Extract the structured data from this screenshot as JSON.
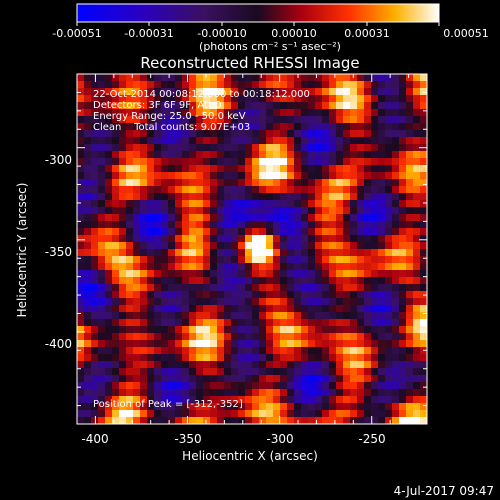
{
  "chart_data": {
    "type": "heatmap",
    "title": "Reconstructed RHESSI Image",
    "xlabel": "Heliocentric X (arcsec)",
    "ylabel": "Heliocentric Y (arcsec)",
    "xlim": [
      -410,
      -220
    ],
    "ylim": [
      -450,
      -260
    ],
    "x_ticks": [
      -400,
      -350,
      -300,
      -250
    ],
    "y_ticks": [
      -300,
      -350,
      -400
    ],
    "colorbar": {
      "ticks": [
        "-0.00051",
        "-0.00031",
        "-0.00010",
        "0.00010",
        "0.00031",
        "0.00051"
      ],
      "unit_label": "(photons cm⁻² s⁻¹ asec⁻²)",
      "range": [
        -0.00051,
        0.00051
      ]
    },
    "annotations": [
      "22-Oct-2014 00:08:12.000 to 00:18:12.000",
      "Detectors: 3F 6F 9F, Att 0",
      "Energy Range: 25.0 - 50.0 keV",
      "Clean    Total counts: 9.07E+03"
    ],
    "peak_label": "Position of Peak = [-312,-352]",
    "peak": [
      -312,
      -352
    ],
    "colors": {
      "background": "#000000",
      "text": "#ffffff"
    }
  },
  "footer": {
    "timestamp": "4-Jul-2017 09:47"
  }
}
